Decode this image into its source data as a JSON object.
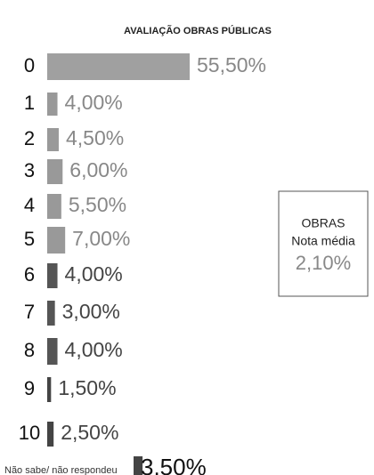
{
  "chart_data": {
    "type": "hbar",
    "title": "AVALIAÇÃO OBRAS PÚBLICAS",
    "categories": [
      "0",
      "1",
      "2",
      "3",
      "4",
      "5",
      "6",
      "7",
      "8",
      "9",
      "10",
      "Não sabe/ não respondeu"
    ],
    "values": [
      55.5,
      4,
      4.5,
      6,
      5.5,
      7,
      4,
      3,
      4,
      1.5,
      2.5,
      3.5
    ],
    "value_labels": [
      "55,50%",
      "4,00%",
      "4,50%",
      "6,00%",
      "5,50%",
      "7,00%",
      "4,00%",
      "3,00%",
      "4,00%",
      "1,50%",
      "2,50%",
      "3,50%"
    ],
    "colors": [
      "#a0a0a0",
      "#999999",
      "#999999",
      "#999999",
      "#999999",
      "#999999",
      "#555555",
      "#555555",
      "#555555",
      "#444444",
      "#444444",
      "#444444"
    ],
    "annotation": [
      "OBRAS",
      "Nota média",
      "2,10%"
    ]
  }
}
